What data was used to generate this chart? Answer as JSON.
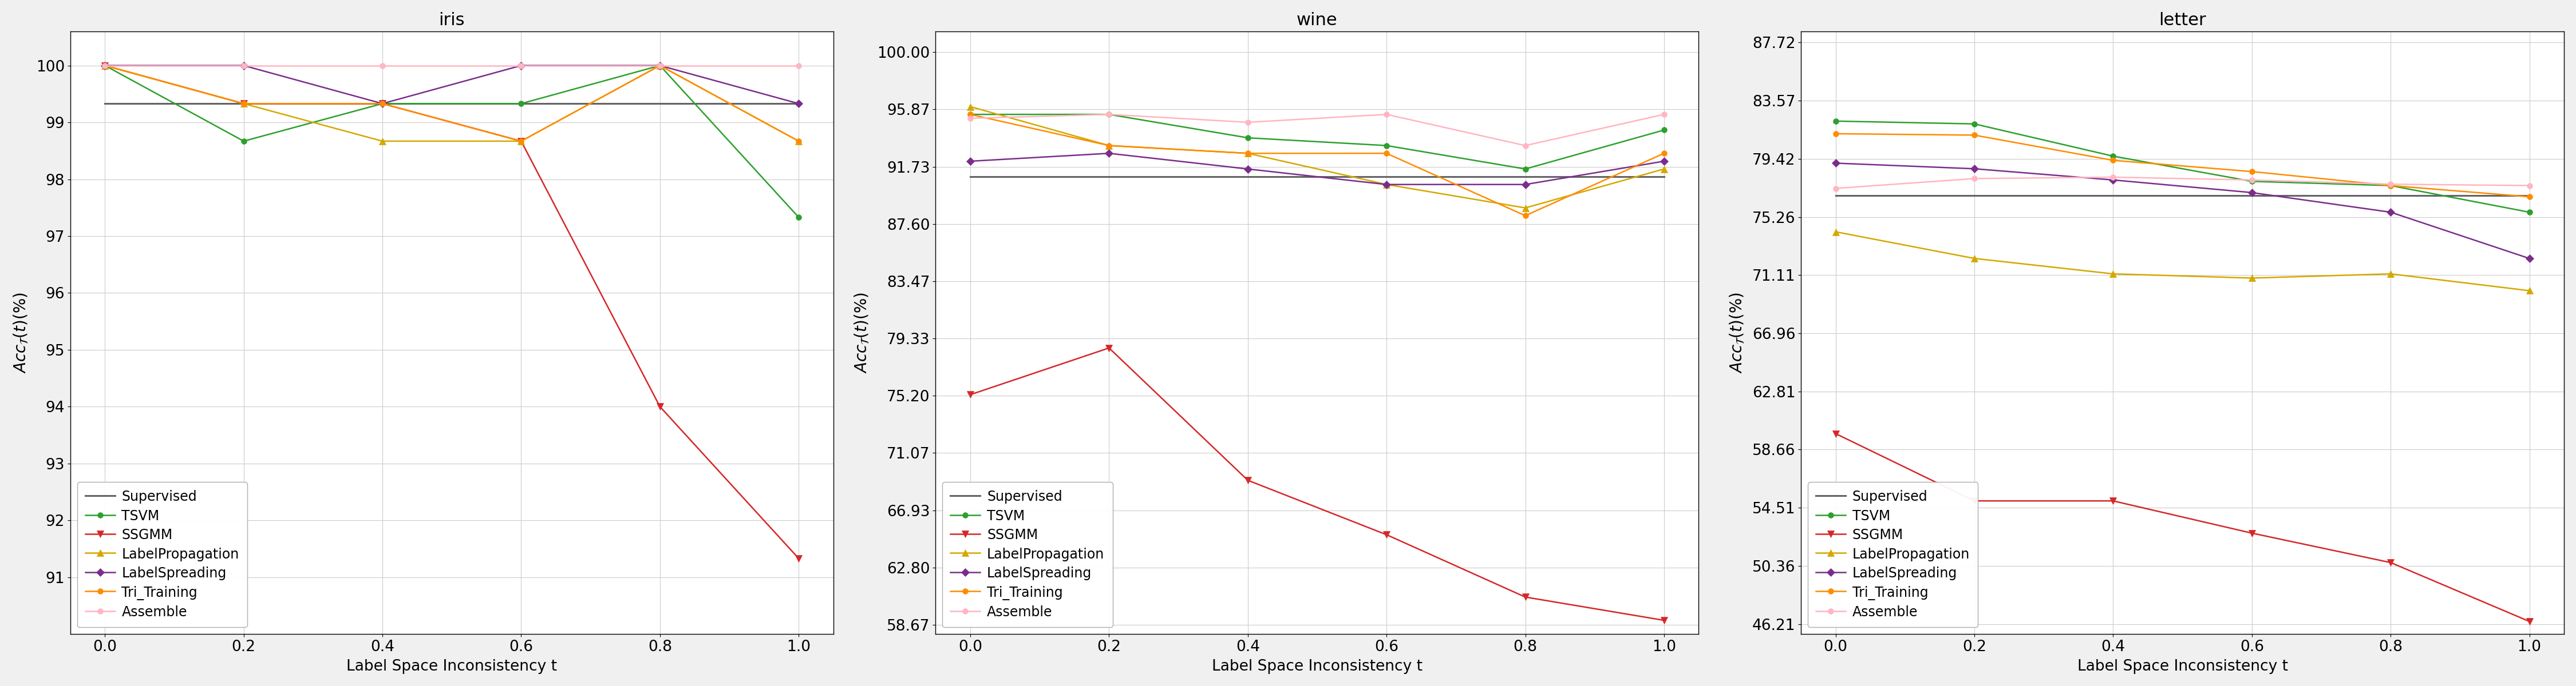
{
  "x": [
    0.0,
    0.2,
    0.4,
    0.6,
    0.8,
    1.0
  ],
  "plots": [
    {
      "title": "iris",
      "ylabel": "$Acc_{\\mathcal{T}}(t)(\\%)$",
      "xlabel": "Label Space Inconsistency t",
      "ylim": [
        90.0,
        100.6
      ],
      "yticks": [
        91,
        92,
        93,
        94,
        95,
        96,
        97,
        98,
        99,
        100
      ],
      "yticklabels": [
        "91",
        "92",
        "93",
        "94",
        "95",
        "96",
        "97",
        "98",
        "99",
        "100"
      ],
      "series": {
        "Supervised": {
          "color": "#636363",
          "marker": null,
          "linestyle": "-",
          "linewidth": 2.2,
          "markersize": 0,
          "values": [
            99.33,
            99.33,
            99.33,
            99.33,
            99.33,
            99.33
          ]
        },
        "TSVM": {
          "color": "#2ca02c",
          "marker": "o",
          "linestyle": "-",
          "linewidth": 1.8,
          "markersize": 7,
          "values": [
            100.0,
            98.67,
            99.33,
            99.33,
            100.0,
            97.33
          ]
        },
        "SSGMM": {
          "color": "#d62728",
          "marker": "v",
          "linestyle": "-",
          "linewidth": 1.8,
          "markersize": 8,
          "values": [
            100.0,
            99.33,
            99.33,
            98.67,
            94.0,
            91.33
          ]
        },
        "LabelPropagation": {
          "color": "#d4a800",
          "marker": "^",
          "linestyle": "-",
          "linewidth": 1.8,
          "markersize": 8,
          "values": [
            100.0,
            99.33,
            98.67,
            98.67,
            100.0,
            98.67
          ]
        },
        "LabelSpreading": {
          "color": "#7b2d8b",
          "marker": "D",
          "linestyle": "-",
          "linewidth": 1.8,
          "markersize": 7,
          "values": [
            100.0,
            100.0,
            99.33,
            100.0,
            100.0,
            99.33
          ]
        },
        "Tri_Training": {
          "color": "#ff8c00",
          "marker": "o",
          "linestyle": "-",
          "linewidth": 1.8,
          "markersize": 7,
          "values": [
            100.0,
            99.33,
            99.33,
            98.67,
            100.0,
            98.67
          ]
        },
        "Assemble": {
          "color": "#ffb6c1",
          "marker": "o",
          "linestyle": "-",
          "linewidth": 1.8,
          "markersize": 7,
          "values": [
            100.0,
            100.0,
            100.0,
            100.0,
            100.0,
            100.0
          ]
        }
      }
    },
    {
      "title": "wine",
      "ylabel": "$Acc_{\\mathcal{T}}(t)(\\%)$",
      "xlabel": "Label Space Inconsistency t",
      "ylim": [
        58.0,
        101.5
      ],
      "yticks": [
        58.67,
        62.8,
        66.93,
        71.07,
        75.2,
        79.33,
        83.47,
        87.6,
        91.73,
        95.87,
        100.0
      ],
      "yticklabels": [
        "58.67",
        "62.80",
        "66.93",
        "71.07",
        "75.20",
        "79.33",
        "83.47",
        "87.60",
        "91.73",
        "95.87",
        "100.00"
      ],
      "series": {
        "Supervised": {
          "color": "#636363",
          "marker": null,
          "linestyle": "-",
          "linewidth": 2.2,
          "markersize": 0,
          "values": [
            91.01,
            91.01,
            91.01,
            91.01,
            91.01,
            91.01
          ]
        },
        "TSVM": {
          "color": "#2ca02c",
          "marker": "o",
          "linestyle": "-",
          "linewidth": 1.8,
          "markersize": 7,
          "values": [
            95.51,
            95.51,
            93.82,
            93.26,
            91.57,
            94.38
          ]
        },
        "SSGMM": {
          "color": "#d62728",
          "marker": "v",
          "linestyle": "-",
          "linewidth": 1.8,
          "markersize": 8,
          "values": [
            75.28,
            78.65,
            69.1,
            65.17,
            60.67,
            58.99
          ]
        },
        "LabelPropagation": {
          "color": "#d4a800",
          "marker": "^",
          "linestyle": "-",
          "linewidth": 1.8,
          "markersize": 8,
          "values": [
            96.07,
            93.26,
            92.7,
            90.45,
            88.76,
            91.57
          ]
        },
        "LabelSpreading": {
          "color": "#7b2d8b",
          "marker": "D",
          "linestyle": "-",
          "linewidth": 1.8,
          "markersize": 7,
          "values": [
            92.13,
            92.7,
            91.57,
            90.45,
            90.45,
            92.13
          ]
        },
        "Tri_Training": {
          "color": "#ff8c00",
          "marker": "o",
          "linestyle": "-",
          "linewidth": 1.8,
          "markersize": 7,
          "values": [
            95.51,
            93.26,
            92.7,
            92.7,
            88.2,
            92.7
          ]
        },
        "Assemble": {
          "color": "#ffb6c1",
          "marker": "o",
          "linestyle": "-",
          "linewidth": 1.8,
          "markersize": 7,
          "values": [
            95.23,
            95.51,
            94.94,
            95.51,
            93.26,
            95.51
          ]
        }
      }
    },
    {
      "title": "letter",
      "ylabel": "$Acc_{\\mathcal{T}}(t)(\\%)$",
      "xlabel": "Label Space Inconsistency t",
      "ylim": [
        45.5,
        88.5
      ],
      "yticks": [
        46.21,
        50.36,
        54.51,
        58.66,
        62.81,
        66.96,
        71.11,
        75.26,
        79.42,
        83.57,
        87.72
      ],
      "yticklabels": [
        "46.21",
        "50.36",
        "54.51",
        "58.66",
        "62.81",
        "66.96",
        "71.11",
        "75.26",
        "79.42",
        "83.57",
        "87.72"
      ],
      "series": {
        "Supervised": {
          "color": "#636363",
          "marker": null,
          "linestyle": "-",
          "linewidth": 2.2,
          "markersize": 0,
          "values": [
            76.8,
            76.8,
            76.8,
            76.8,
            76.8,
            76.8
          ]
        },
        "TSVM": {
          "color": "#2ca02c",
          "marker": "o",
          "linestyle": "-",
          "linewidth": 1.8,
          "markersize": 7,
          "values": [
            82.1,
            81.9,
            79.6,
            77.8,
            77.5,
            75.6
          ]
        },
        "SSGMM": {
          "color": "#d62728",
          "marker": "v",
          "linestyle": "-",
          "linewidth": 1.8,
          "markersize": 8,
          "values": [
            59.8,
            55.0,
            55.0,
            52.7,
            50.6,
            46.4
          ]
        },
        "LabelPropagation": {
          "color": "#d4a800",
          "marker": "^",
          "linestyle": "-",
          "linewidth": 1.8,
          "markersize": 8,
          "values": [
            74.2,
            72.3,
            71.2,
            70.9,
            71.2,
            70.0
          ]
        },
        "LabelSpreading": {
          "color": "#7b2d8b",
          "marker": "D",
          "linestyle": "-",
          "linewidth": 1.8,
          "markersize": 7,
          "values": [
            79.1,
            78.7,
            77.9,
            77.0,
            75.6,
            72.3
          ]
        },
        "Tri_Training": {
          "color": "#ff8c00",
          "marker": "o",
          "linestyle": "-",
          "linewidth": 1.8,
          "markersize": 7,
          "values": [
            81.2,
            81.1,
            79.3,
            78.5,
            77.5,
            76.7
          ]
        },
        "Assemble": {
          "color": "#ffb6c1",
          "marker": "o",
          "linestyle": "-",
          "linewidth": 1.8,
          "markersize": 7,
          "values": [
            77.3,
            78.0,
            78.1,
            77.9,
            77.6,
            77.5
          ]
        }
      }
    }
  ],
  "legend_order": [
    "Supervised",
    "TSVM",
    "SSGMM",
    "LabelPropagation",
    "LabelSpreading",
    "Tri_Training",
    "Assemble"
  ],
  "fig_bg": "#f0f0f0"
}
